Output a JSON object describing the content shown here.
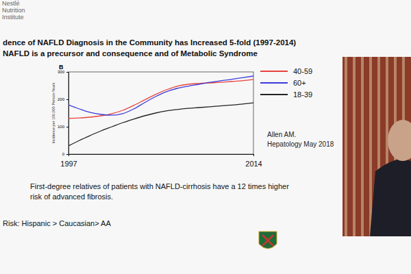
{
  "slide": {
    "header": [
      "Nestlé",
      "Nutrition",
      "Institute"
    ],
    "title_lines": [
      "dence of NAFLD Diagnosis in the Community has Increased 5-fold (1997-2014)",
      "NAFLD is a precursor and consequence and of Metabolic Syndrome"
    ],
    "panel_label": "B",
    "citation": [
      "Allen AM.",
      "Hepatology May 2018"
    ],
    "notes": [
      "First-degree relatives of patients with NAFLD-cirrhosis have a 12 times higher",
      "risk of advanced fibrosis."
    ],
    "risk": "Risk: Hispanic > Caucasian> AA"
  },
  "chart_data": {
    "type": "line",
    "y_label": "Incidence per 100,000 Person-Years",
    "x": [
      1997,
      1998,
      1999,
      2000,
      2001,
      2002,
      2003,
      2004,
      2005,
      2006,
      2007,
      2008,
      2009,
      2010,
      2011,
      2012,
      2013,
      2014
    ],
    "series": [
      {
        "name": "40-59",
        "color": "#e8413c",
        "values": [
          130,
          132,
          135,
          140,
          148,
          160,
          178,
          198,
          218,
          235,
          248,
          255,
          258,
          260,
          262,
          265,
          268,
          272
        ]
      },
      {
        "name": "60+",
        "color": "#3a3ad8",
        "values": [
          180,
          165,
          152,
          145,
          142,
          148,
          165,
          188,
          210,
          228,
          240,
          248,
          255,
          262,
          268,
          273,
          279,
          285
        ]
      },
      {
        "name": "18-39",
        "color": "#222222",
        "values": [
          30,
          50,
          68,
          85,
          100,
          115,
          128,
          140,
          150,
          158,
          163,
          167,
          170,
          173,
          176,
          179,
          183,
          187
        ]
      }
    ],
    "xlim": [
      1997,
      2014
    ],
    "xticks": [
      1997,
      2014
    ],
    "ylim": [
      0,
      300
    ],
    "yticks": [
      0,
      100,
      200,
      300
    ],
    "grid": false,
    "legend": "right"
  }
}
